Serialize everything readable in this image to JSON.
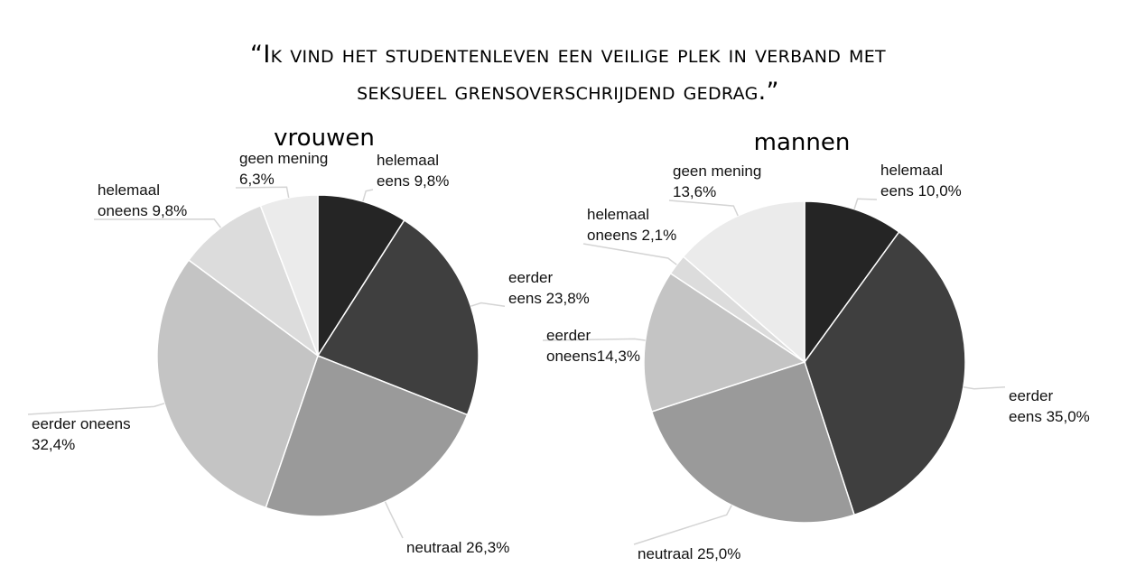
{
  "title_lines": [
    "“Ik vind het studentenleven een veilige plek in verband met",
    "seksueel grensoverschrijdend gedrag.”"
  ],
  "colors": {
    "helemaal eens": "#252525",
    "eerder eens": "#3f3f3f",
    "neutraal": "#9a9a9a",
    "eerder oneens": "#c4c4c4",
    "helemaal oneens": "#dcdcdc",
    "geen mening": "#ebebeb",
    "leader": "#d4d4d4"
  },
  "chart_data": [
    {
      "type": "pie",
      "title": "vrouwen",
      "slices": [
        {
          "category": "helemaal eens",
          "value": 9.8,
          "label_lines": [
            "helemaal",
            "eens 9,8%"
          ]
        },
        {
          "category": "eerder eens",
          "value": 23.8,
          "label_lines": [
            "eerder",
            "eens 23,8%"
          ]
        },
        {
          "category": "neutraal",
          "value": 26.3,
          "label_lines": [
            "neutraal 26,3%"
          ]
        },
        {
          "category": "eerder oneens",
          "value": 32.4,
          "label_lines": [
            "eerder oneens",
            "32,4%"
          ]
        },
        {
          "category": "helemaal oneens",
          "value": 9.8,
          "label_lines": [
            "helemaal",
            "oneens 9,8%"
          ]
        },
        {
          "category": "geen mening",
          "value": 6.3,
          "label_lines": [
            "geen mening",
            "6,3%"
          ]
        }
      ]
    },
    {
      "type": "pie",
      "title": "mannen",
      "slices": [
        {
          "category": "helemaal eens",
          "value": 10.0,
          "label_lines": [
            "helemaal",
            "eens 10,0%"
          ]
        },
        {
          "category": "eerder eens",
          "value": 35.0,
          "label_lines": [
            "eerder",
            "eens 35,0%"
          ]
        },
        {
          "category": "neutraal",
          "value": 25.0,
          "label_lines": [
            "neutraal 25,0%"
          ]
        },
        {
          "category": "eerder oneens",
          "value": 14.3,
          "label_lines": [
            "eerder",
            "oneens14,3%"
          ]
        },
        {
          "category": "helemaal oneens",
          "value": 2.1,
          "label_lines": [
            "helemaal",
            "oneens 2,1%"
          ]
        },
        {
          "category": "geen mening",
          "value": 13.6,
          "label_lines": [
            "geen mening",
            "13,6%"
          ]
        }
      ]
    }
  ]
}
